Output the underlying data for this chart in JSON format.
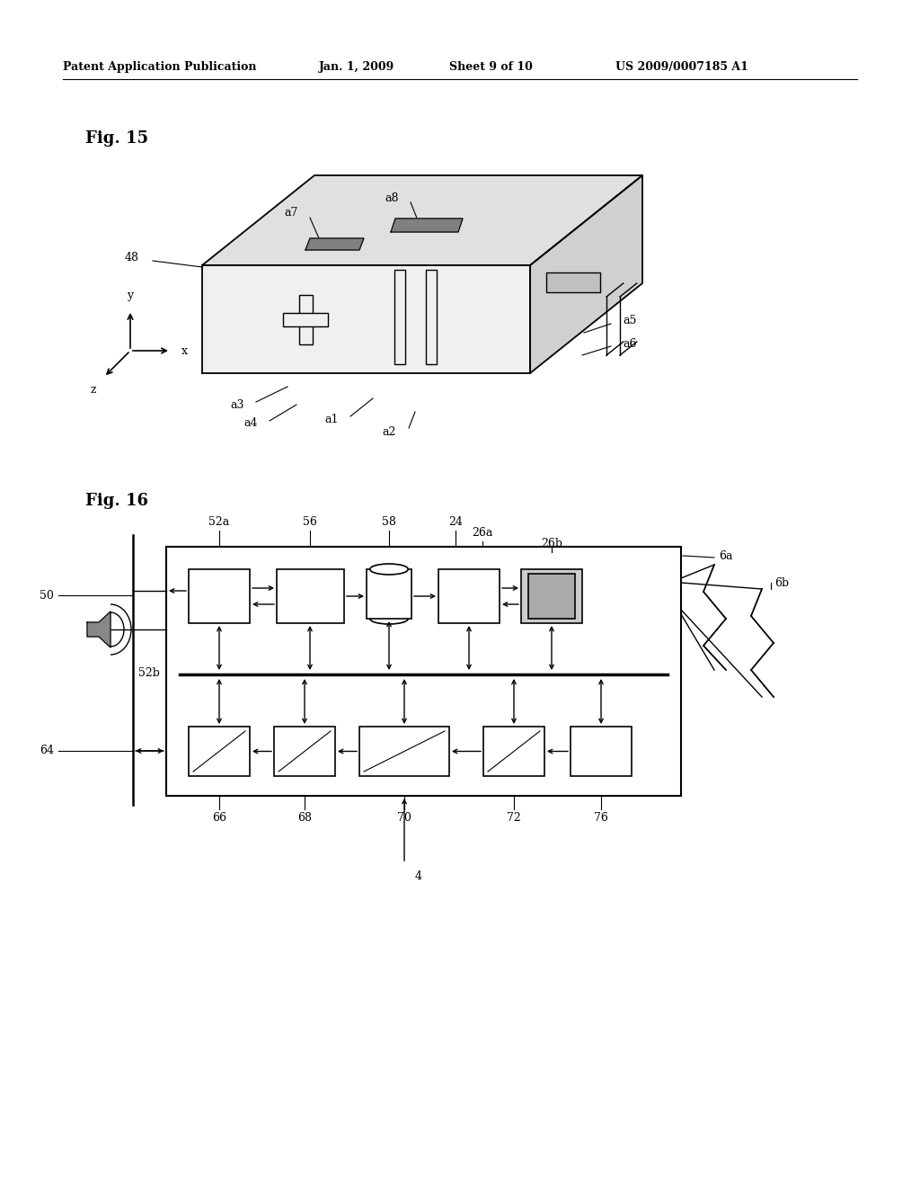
{
  "bg_color": "#ffffff",
  "header_text": "Patent Application Publication",
  "header_date": "Jan. 1, 2009",
  "header_sheet": "Sheet 9 of 10",
  "header_patent": "US 2009/0007185 A1",
  "fig15_label": "Fig. 15",
  "fig16_label": "Fig. 16"
}
